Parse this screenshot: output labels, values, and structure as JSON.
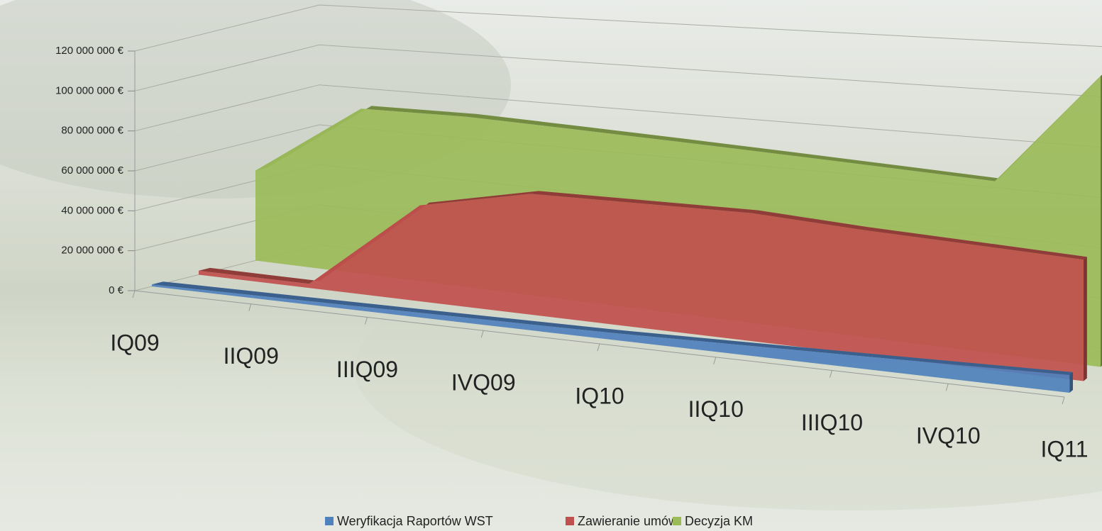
{
  "chart_data": {
    "type": "area3d",
    "categories": [
      "IQ09",
      "IIQ09",
      "IIIQ09",
      "IVQ09",
      "IQ10",
      "IIQ10",
      "IIIQ10",
      "IVQ10",
      "IQ11"
    ],
    "series": [
      {
        "name": "Weryfikacja Raportów WST",
        "color": "#4f81bd",
        "values": [
          1000000,
          1500000,
          2000000,
          2500000,
          3000000,
          4000000,
          5000000,
          6000000,
          7000000
        ]
      },
      {
        "name": "Zawieranie umów",
        "color": "#c0504d",
        "values": [
          2000000,
          2000000,
          45000000,
          55000000,
          55000000,
          55000000,
          52000000,
          50000000,
          48000000
        ]
      },
      {
        "name": "Decyzja KM",
        "color": "#9bbb59",
        "values": [
          45000000,
          80000000,
          80000000,
          78000000,
          76000000,
          74000000,
          72000000,
          70000000,
          115000000
        ]
      }
    ],
    "ylim": [
      0,
      120000000
    ],
    "yticks": [
      {
        "value": 0,
        "label": "0 €"
      },
      {
        "value": 20000000,
        "label": "20 000 000 €"
      },
      {
        "value": 40000000,
        "label": "40 000 000 €"
      },
      {
        "value": 60000000,
        "label": "60 000 000 €"
      },
      {
        "value": 80000000,
        "label": "80 000 000 €"
      },
      {
        "value": 100000000,
        "label": "100 000 000 €"
      },
      {
        "value": 120000000,
        "label": "120 000 000 €"
      }
    ],
    "grid": true
  }
}
